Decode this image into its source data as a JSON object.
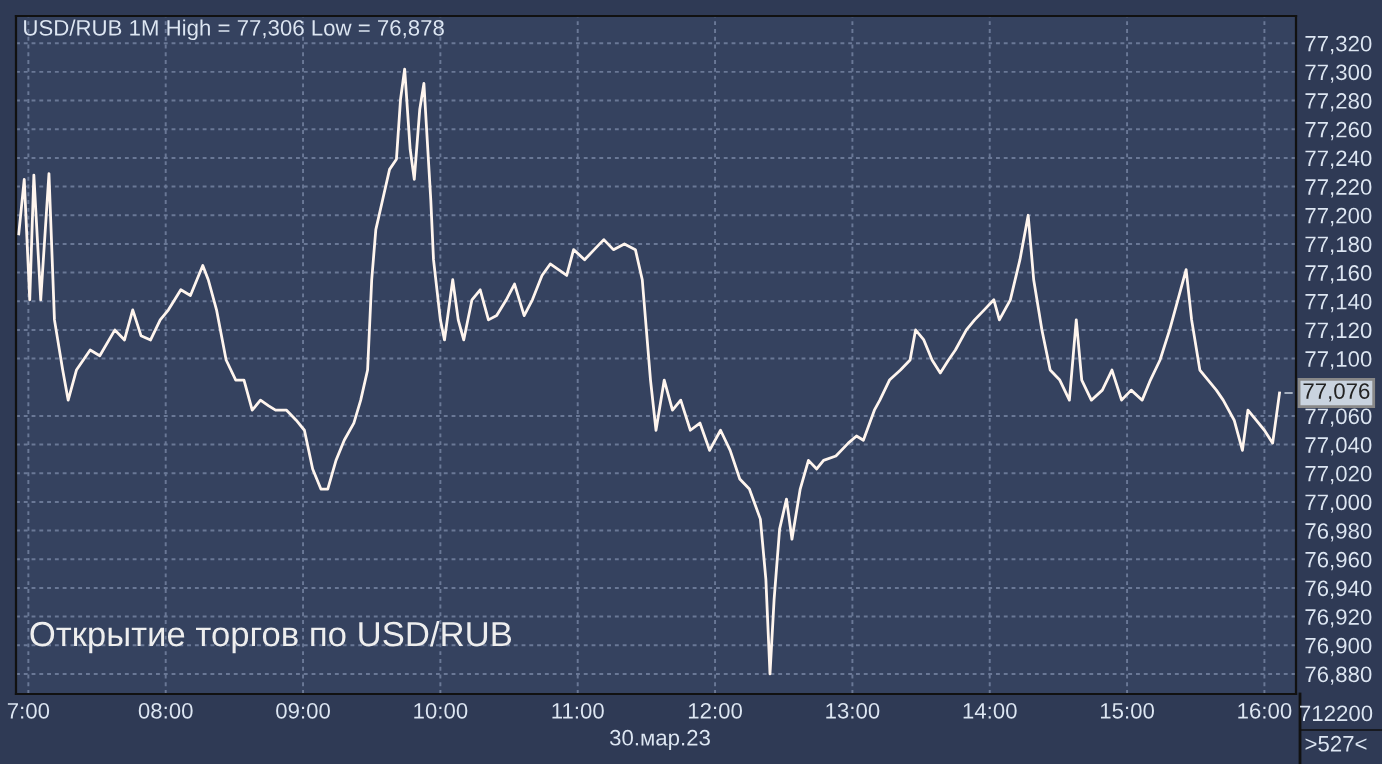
{
  "chart_data": {
    "type": "line",
    "title": "USD/RUB 1M High = 77,306 Low = 76,878",
    "subtitle": "Открытие торгов по USD/RUB",
    "annotations": [
      "30.мар.23",
      "712200\n>527<",
      {
        "text": "77,076",
        "x": 16.11,
        "y": 77076
      }
    ],
    "series": [
      {
        "color": "#fff5ee",
        "x": [
          6.93,
          6.97,
          7.01,
          7.04,
          7.09,
          7.15,
          7.19,
          7.25,
          7.29,
          7.35,
          7.45,
          7.52,
          7.63,
          7.7,
          7.76,
          7.82,
          7.89,
          7.96,
          8.02,
          8.11,
          8.18,
          8.27,
          8.31,
          8.37,
          8.44,
          8.51,
          8.57,
          8.63,
          8.69,
          8.75,
          8.8,
          8.88,
          8.95,
          9.01,
          9.07,
          9.13,
          9.18,
          9.24,
          9.3,
          9.37,
          9.42,
          9.47,
          9.5,
          9.53,
          9.58,
          9.63,
          9.68,
          9.71,
          9.74,
          9.78,
          9.81,
          9.85,
          9.88,
          9.93,
          9.95,
          10.0,
          10.03,
          10.09,
          10.13,
          10.17,
          10.23,
          10.29,
          10.35,
          10.41,
          10.48,
          10.54,
          10.61,
          10.67,
          10.74,
          10.8,
          10.86,
          10.92,
          10.97,
          11.05,
          11.12,
          11.19,
          11.26,
          11.34,
          11.42,
          11.47,
          11.53,
          11.57,
          11.63,
          11.69,
          11.75,
          11.82,
          11.89,
          11.96,
          12.04,
          12.11,
          12.18,
          12.25,
          12.33,
          12.37,
          12.4,
          12.43,
          12.47,
          12.52,
          12.56,
          12.62,
          12.68,
          12.74,
          12.79,
          12.88,
          12.97,
          13.03,
          13.08,
          13.16,
          13.2,
          13.27,
          13.35,
          13.42,
          13.46,
          13.52,
          13.58,
          13.64,
          13.7,
          13.75,
          13.83,
          13.89,
          13.96,
          14.03,
          14.07,
          14.15,
          14.22,
          14.28,
          14.32,
          14.38,
          14.44,
          14.51,
          14.58,
          14.63,
          14.67,
          14.74,
          14.82,
          14.89,
          14.96,
          15.03,
          15.11,
          15.17,
          15.24,
          15.31,
          15.37,
          15.43,
          15.47,
          15.53,
          15.59,
          15.65,
          15.7,
          15.78,
          15.84,
          15.88,
          15.94,
          16.0,
          16.06,
          16.11
        ],
        "values": [
          77187,
          77225,
          77141,
          77228,
          77141,
          77229,
          77127,
          77092,
          77071,
          77092,
          77106,
          77102,
          77120,
          77113,
          77134,
          77116,
          77113,
          77127,
          77134,
          77148,
          77144,
          77165,
          77155,
          77134,
          77099,
          77085,
          77085,
          77064,
          77071,
          77067,
          77064,
          77064,
          77057,
          77050,
          77023,
          77009,
          77009,
          77029,
          77043,
          77055,
          77071,
          77092,
          77155,
          77190,
          77211,
          77232,
          77239,
          77281,
          77302,
          77246,
          77225,
          77274,
          77292,
          77211,
          77169,
          77127,
          77113,
          77155,
          77127,
          77113,
          77141,
          77148,
          77127,
          77130,
          77141,
          77152,
          77130,
          77141,
          77158,
          77166,
          77162,
          77158,
          77176,
          77169,
          77176,
          77183,
          77176,
          77180,
          77176,
          77155,
          77085,
          77050,
          77085,
          77064,
          77071,
          77050,
          77055,
          77036,
          77050,
          77036,
          77016,
          77009,
          76988,
          76946,
          76880,
          76932,
          76981,
          77002,
          76974,
          77009,
          77029,
          77023,
          77029,
          77032,
          77041,
          77046,
          77043,
          77064,
          77071,
          77085,
          77092,
          77099,
          77120,
          77113,
          77099,
          77090,
          77099,
          77106,
          77120,
          77127,
          77134,
          77141,
          77127,
          77141,
          77169,
          77200,
          77155,
          77120,
          77092,
          77085,
          77071,
          77127,
          77085,
          77071,
          77078,
          77092,
          77071,
          77078,
          77071,
          77085,
          77099,
          77120,
          77141,
          77162,
          77127,
          77092,
          77085,
          77078,
          77071,
          77057,
          77036,
          77064,
          77057,
          77050,
          77041,
          77076
        ]
      }
    ],
    "xlim": [
      6.91,
      16.23
    ],
    "xticks": [
      {
        "value": 7,
        "label": "7:00"
      },
      {
        "value": 8,
        "label": "08:00"
      },
      {
        "value": 9,
        "label": "09:00"
      },
      {
        "value": 10,
        "label": "10:00"
      },
      {
        "value": 11,
        "label": "11:00"
      },
      {
        "value": 12,
        "label": "12:00"
      },
      {
        "value": 13,
        "label": "13:00"
      },
      {
        "value": 14,
        "label": "14:00"
      },
      {
        "value": 15,
        "label": "15:00"
      },
      {
        "value": 16,
        "label": "16:00"
      }
    ],
    "ylim": [
      76866,
      77339
    ],
    "yticks": [
      {
        "value": 76880,
        "label": "76,880"
      },
      {
        "value": 76900,
        "label": "76,900"
      },
      {
        "value": 76920,
        "label": "76,920"
      },
      {
        "value": 76940,
        "label": "76,940"
      },
      {
        "value": 76960,
        "label": "76,960"
      },
      {
        "value": 76980,
        "label": "76,980"
      },
      {
        "value": 77000,
        "label": "77,000"
      },
      {
        "value": 77020,
        "label": "77,020"
      },
      {
        "value": 77040,
        "label": "77,040"
      },
      {
        "value": 77060,
        "label": "77,060"
      },
      {
        "value": 77100,
        "label": "77,100"
      },
      {
        "value": 77120,
        "label": "77,120"
      },
      {
        "value": 77140,
        "label": "77,140"
      },
      {
        "value": 77160,
        "label": "77,160"
      },
      {
        "value": 77180,
        "label": "77,180"
      },
      {
        "value": 77200,
        "label": "77,200"
      },
      {
        "value": 77220,
        "label": "77,220"
      },
      {
        "value": 77240,
        "label": "77,240"
      },
      {
        "value": 77260,
        "label": "77,260"
      },
      {
        "value": 77280,
        "label": "77,280"
      },
      {
        "value": 77300,
        "label": "77,300"
      },
      {
        "value": 77320,
        "label": "77,320"
      }
    ],
    "grid": true
  }
}
